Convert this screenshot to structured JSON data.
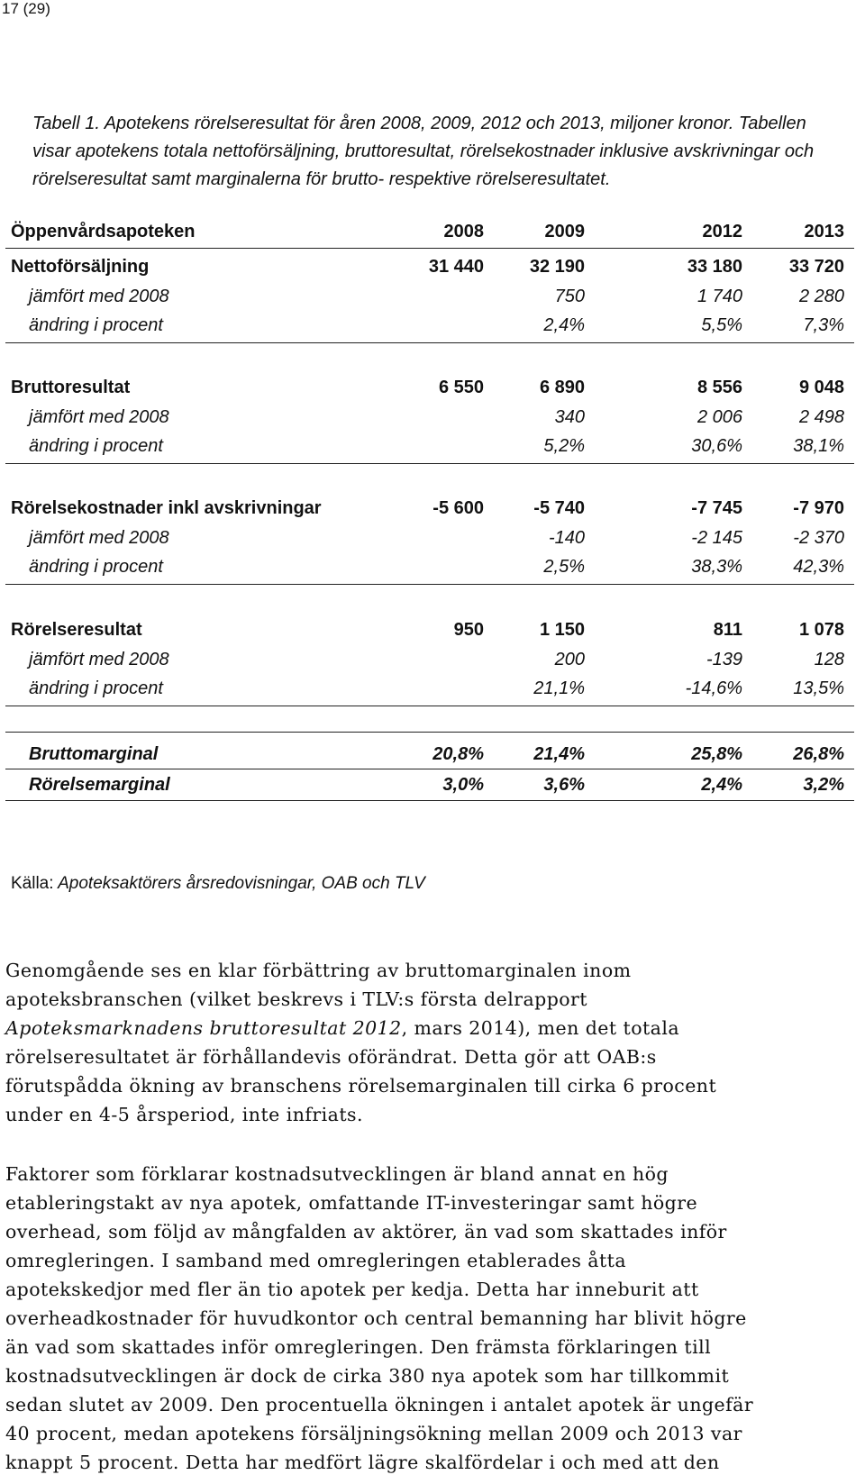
{
  "page_number": "17 (29)",
  "caption": "Tabell 1. Apotekens rörelseresultat för åren 2008, 2009, 2012 och 2013, miljoner kronor. Tabellen visar apotekens totala nettoförsäljning, bruttoresultat, rörelsekostnader inklusive avskrivningar och rörelseresultat samt marginalerna för brutto- respektive rörelseresultatet.",
  "table": {
    "header": {
      "label": "Öppenvårdsapoteken",
      "years": [
        "2008",
        "2009",
        "2012",
        "2013"
      ]
    },
    "sections": [
      {
        "title": "Nettoförsäljning",
        "values": [
          "31 440",
          "32 190",
          "33 180",
          "33 720"
        ],
        "comparison_label": "jämfört med 2008",
        "comparison": [
          "",
          "750",
          "1 740",
          "2 280"
        ],
        "change_label": "ändring i procent",
        "change": [
          "",
          "2,4%",
          "5,5%",
          "7,3%"
        ]
      },
      {
        "title": "Bruttoresultat",
        "values": [
          "6 550",
          "6 890",
          "8 556",
          "9 048"
        ],
        "comparison_label": "jämfört med 2008",
        "comparison": [
          "",
          "340",
          "2 006",
          "2 498"
        ],
        "change_label": "ändring i procent",
        "change": [
          "",
          "5,2%",
          "30,6%",
          "38,1%"
        ]
      },
      {
        "title": "Rörelsekostnader inkl avskrivningar",
        "values": [
          "-5 600",
          "-5 740",
          "-7 745",
          "-7 970"
        ],
        "comparison_label": "jämfört med 2008",
        "comparison": [
          "",
          "-140",
          "-2 145",
          "-2 370"
        ],
        "change_label": "ändring i procent",
        "change": [
          "",
          "2,5%",
          "38,3%",
          "42,3%"
        ]
      },
      {
        "title": "Rörelseresultat",
        "values": [
          "950",
          "1 150",
          "811",
          "1 078"
        ],
        "comparison_label": "jämfört med 2008",
        "comparison": [
          "",
          "200",
          "-139",
          "128"
        ],
        "change_label": "ändring i procent",
        "change": [
          "",
          "21,1%",
          "-14,6%",
          "13,5%"
        ]
      }
    ],
    "margins": [
      {
        "label": "Bruttomarginal",
        "values": [
          "20,8%",
          "21,4%",
          "25,8%",
          "26,8%"
        ]
      },
      {
        "label": "Rörelsemarginal",
        "values": [
          "3,0%",
          "3,6%",
          "2,4%",
          "3,2%"
        ]
      }
    ]
  },
  "source": "Källa: Apoteksaktörers årsredovisningar, OAB och TLV",
  "paragraphs": [
    [
      "Genomgående ses en klar förbättring av bruttomarginalen inom",
      "apoteksbranschen (vilket beskrevs i TLV:s första delrapport",
      "Apoteksmarknadens bruttoresultat 2012, mars 2014), men det totala",
      "rörelseresultatet är förhållandevis oförändrat. Detta gör att OAB:s",
      "förutspådda ökning av branschens rörelsemarginalen till cirka 6 procent",
      "under en 4-5 årsperiod, inte infriats."
    ],
    [
      "Faktorer som förklarar kostnadsutvecklingen är bland annat en hög",
      "etableringstakt av nya apotek, omfattande IT-investeringar samt högre",
      "overhead, som följd av mångfalden av aktörer, än vad som skattades inför",
      "omregleringen. I samband med omregleringen etablerades åtta",
      "apotekskedjor med fler än tio apotek per kedja. Detta har inneburit att",
      "overheadkostnader för huvudkontor och central bemanning har blivit högre",
      "än vad som skattades inför omregleringen. Den främsta förklaringen till",
      "kostnadsutvecklingen är dock de cirka 380 nya apotek som har tillkommit",
      "sedan slutet av 2009. Den procentuella ökningen i antalet apotek är ungefär",
      "40 procent, medan apotekens försäljningsökning mellan 2009 och 2013 var",
      "knappt 5 procent. Detta har medfört lägre skalfördelar i och med att den"
    ]
  ],
  "italic_phrase": "Apoteksmarknadens bruttoresultat 2012"
}
